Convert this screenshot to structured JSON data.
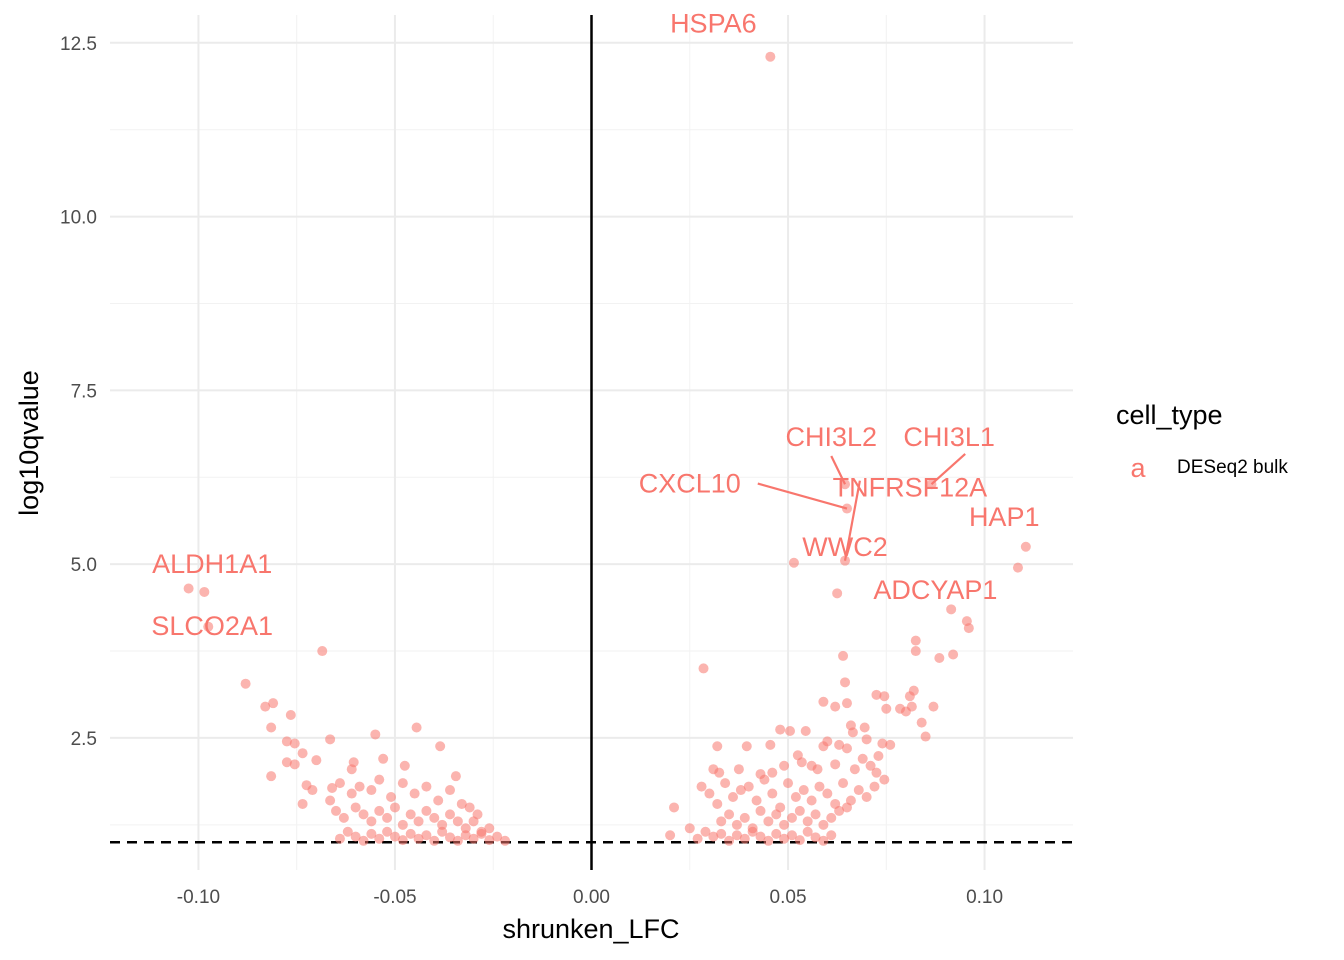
{
  "chart_data": {
    "type": "scatter",
    "title": "",
    "xlabel": "shrunken_LFC",
    "ylabel": "log10qvalue",
    "xlim": [
      -0.1225,
      0.1225
    ],
    "ylim": [
      0.6,
      12.9
    ],
    "x_ticks": [
      -0.1,
      -0.05,
      0.0,
      0.05,
      0.1
    ],
    "x_tick_labels": [
      "-0.10",
      "-0.05",
      "0.00",
      "0.05",
      "0.10"
    ],
    "y_ticks": [
      2.5,
      5.0,
      7.5,
      10.0,
      12.5
    ],
    "y_tick_labels": [
      "2.5",
      "5.0",
      "7.5",
      "10.0",
      "12.5"
    ],
    "grid": true,
    "point_color": "#F8766D",
    "point_opacity": 0.55,
    "vline_x": 0,
    "hline_y": 1.0,
    "legend": {
      "title": "cell_type",
      "key_glyph": "a",
      "entries": [
        "DESeq2 bulk"
      ],
      "placement": "right"
    },
    "labeled_points": [
      {
        "label": "HSPA6",
        "x": 0.0455,
        "y": 12.3
      },
      {
        "label": "CHI3L2",
        "x": 0.0645,
        "y": 6.15
      },
      {
        "label": "CHI3L1",
        "x": 0.0865,
        "y": 6.15
      },
      {
        "label": "CXCL10",
        "x": 0.065,
        "y": 5.8
      },
      {
        "label": "TNFRSF12A",
        "x": 0.0645,
        "y": 5.05
      },
      {
        "label": "WWC2",
        "x": 0.0515,
        "y": 5.02
      },
      {
        "label": "HAP1",
        "x": 0.1105,
        "y": 5.25
      },
      {
        "label": "ADCYAP1",
        "x": 0.1085,
        "y": 4.95
      },
      {
        "label": "ALDH1A1",
        "x": -0.1025,
        "y": 4.65
      },
      {
        "label": "SLCO2A1",
        "x": -0.0985,
        "y": 4.6
      }
    ],
    "series": [
      {
        "points": [
          [
            0.0455,
            12.3
          ],
          [
            0.0645,
            6.15
          ],
          [
            0.0865,
            6.15
          ],
          [
            0.065,
            5.8
          ],
          [
            0.0645,
            5.05
          ],
          [
            0.0515,
            5.02
          ],
          [
            0.1105,
            5.25
          ],
          [
            0.1085,
            4.95
          ],
          [
            0.0625,
            4.58
          ],
          [
            0.0915,
            4.35
          ],
          [
            0.0955,
            4.18
          ],
          [
            0.096,
            4.08
          ],
          [
            0.064,
            3.68
          ],
          [
            0.0825,
            3.9
          ],
          [
            0.0825,
            3.75
          ],
          [
            0.0885,
            3.65
          ],
          [
            0.092,
            3.7
          ],
          [
            0.0645,
            3.3
          ],
          [
            0.0285,
            3.5
          ],
          [
            0.065,
            3.0
          ],
          [
            0.0725,
            3.12
          ],
          [
            0.0745,
            3.1
          ],
          [
            0.075,
            2.92
          ],
          [
            0.0785,
            2.92
          ],
          [
            0.081,
            3.1
          ],
          [
            0.082,
            3.18
          ],
          [
            0.08,
            2.88
          ],
          [
            0.0815,
            2.95
          ],
          [
            0.087,
            2.95
          ],
          [
            0.059,
            3.02
          ],
          [
            0.062,
            2.95
          ],
          [
            0.0695,
            2.65
          ],
          [
            0.066,
            2.68
          ],
          [
            0.084,
            2.72
          ],
          [
            0.085,
            2.52
          ],
          [
            0.048,
            2.62
          ],
          [
            0.0505,
            2.6
          ],
          [
            0.0545,
            2.6
          ],
          [
            0.0665,
            2.58
          ],
          [
            0.06,
            2.45
          ],
          [
            0.063,
            2.4
          ],
          [
            0.07,
            2.48
          ],
          [
            0.074,
            2.42
          ],
          [
            0.076,
            2.4
          ],
          [
            0.032,
            2.38
          ],
          [
            0.0395,
            2.38
          ],
          [
            0.0455,
            2.4
          ],
          [
            0.0525,
            2.25
          ],
          [
            0.059,
            2.38
          ],
          [
            0.073,
            2.24
          ],
          [
            0.069,
            2.2
          ],
          [
            0.065,
            2.35
          ],
          [
            0.031,
            2.05
          ],
          [
            0.0325,
            2.0
          ],
          [
            0.0375,
            2.05
          ],
          [
            0.043,
            1.98
          ],
          [
            0.046,
            2.0
          ],
          [
            0.049,
            2.1
          ],
          [
            0.0535,
            2.15
          ],
          [
            0.056,
            2.1
          ],
          [
            0.0575,
            2.05
          ],
          [
            0.062,
            2.12
          ],
          [
            0.067,
            2.05
          ],
          [
            0.071,
            2.1
          ],
          [
            0.0725,
            2.0
          ],
          [
            0.0745,
            1.9
          ],
          [
            0.021,
            1.5
          ],
          [
            0.02,
            1.1
          ],
          [
            0.025,
            1.2
          ],
          [
            0.028,
            1.8
          ],
          [
            0.03,
            1.7
          ],
          [
            0.032,
            1.55
          ],
          [
            0.034,
            1.85
          ],
          [
            0.036,
            1.65
          ],
          [
            0.038,
            1.75
          ],
          [
            0.04,
            1.8
          ],
          [
            0.042,
            1.6
          ],
          [
            0.044,
            1.9
          ],
          [
            0.046,
            1.7
          ],
          [
            0.048,
            1.5
          ],
          [
            0.05,
            1.85
          ],
          [
            0.052,
            1.65
          ],
          [
            0.054,
            1.75
          ],
          [
            0.056,
            1.6
          ],
          [
            0.058,
            1.8
          ],
          [
            0.06,
            1.7
          ],
          [
            0.062,
            1.55
          ],
          [
            0.064,
            1.85
          ],
          [
            0.066,
            1.6
          ],
          [
            0.068,
            1.75
          ],
          [
            0.07,
            1.65
          ],
          [
            0.072,
            1.8
          ],
          [
            0.065,
            1.5
          ],
          [
            0.033,
            1.3
          ],
          [
            0.035,
            1.4
          ],
          [
            0.037,
            1.25
          ],
          [
            0.039,
            1.35
          ],
          [
            0.041,
            1.2
          ],
          [
            0.043,
            1.45
          ],
          [
            0.045,
            1.3
          ],
          [
            0.047,
            1.4
          ],
          [
            0.049,
            1.25
          ],
          [
            0.051,
            1.35
          ],
          [
            0.053,
            1.45
          ],
          [
            0.055,
            1.3
          ],
          [
            0.057,
            1.4
          ],
          [
            0.059,
            1.25
          ],
          [
            0.061,
            1.35
          ],
          [
            0.063,
            1.45
          ],
          [
            0.027,
            1.05
          ],
          [
            0.029,
            1.15
          ],
          [
            0.031,
            1.08
          ],
          [
            0.033,
            1.12
          ],
          [
            0.035,
            1.02
          ],
          [
            0.037,
            1.1
          ],
          [
            0.039,
            1.05
          ],
          [
            0.041,
            1.15
          ],
          [
            0.043,
            1.08
          ],
          [
            0.045,
            1.02
          ],
          [
            0.047,
            1.12
          ],
          [
            0.049,
            1.05
          ],
          [
            0.051,
            1.1
          ],
          [
            0.053,
            1.03
          ],
          [
            0.055,
            1.15
          ],
          [
            0.057,
            1.07
          ],
          [
            0.059,
            1.02
          ],
          [
            0.061,
            1.1
          ],
          [
            -0.1025,
            4.65
          ],
          [
            -0.0985,
            4.6
          ],
          [
            -0.0975,
            4.1
          ],
          [
            -0.088,
            3.28
          ],
          [
            -0.0685,
            3.75
          ],
          [
            -0.081,
            3.0
          ],
          [
            -0.083,
            2.95
          ],
          [
            -0.0765,
            2.83
          ],
          [
            -0.0815,
            2.65
          ],
          [
            -0.0775,
            2.45
          ],
          [
            -0.0755,
            2.42
          ],
          [
            -0.0665,
            2.48
          ],
          [
            -0.055,
            2.55
          ],
          [
            -0.0445,
            2.65
          ],
          [
            -0.0385,
            2.38
          ],
          [
            -0.0735,
            2.28
          ],
          [
            -0.07,
            2.18
          ],
          [
            -0.0775,
            2.15
          ],
          [
            -0.0755,
            2.12
          ],
          [
            -0.0605,
            2.15
          ],
          [
            -0.061,
            2.05
          ],
          [
            -0.053,
            2.2
          ],
          [
            -0.0475,
            2.1
          ],
          [
            -0.0345,
            1.95
          ],
          [
            -0.0815,
            1.95
          ],
          [
            -0.0725,
            1.82
          ],
          [
            -0.071,
            1.75
          ],
          [
            -0.066,
            1.78
          ],
          [
            -0.064,
            1.85
          ],
          [
            -0.061,
            1.7
          ],
          [
            -0.059,
            1.8
          ],
          [
            -0.056,
            1.75
          ],
          [
            -0.054,
            1.9
          ],
          [
            -0.051,
            1.65
          ],
          [
            -0.048,
            1.85
          ],
          [
            -0.045,
            1.7
          ],
          [
            -0.042,
            1.8
          ],
          [
            -0.039,
            1.6
          ],
          [
            -0.036,
            1.75
          ],
          [
            -0.033,
            1.55
          ],
          [
            -0.031,
            1.5
          ],
          [
            -0.029,
            1.4
          ],
          [
            -0.0735,
            1.55
          ],
          [
            -0.0665,
            1.6
          ],
          [
            -0.065,
            1.45
          ],
          [
            -0.063,
            1.35
          ],
          [
            -0.06,
            1.5
          ],
          [
            -0.058,
            1.4
          ],
          [
            -0.056,
            1.3
          ],
          [
            -0.054,
            1.45
          ],
          [
            -0.052,
            1.35
          ],
          [
            -0.05,
            1.5
          ],
          [
            -0.048,
            1.25
          ],
          [
            -0.046,
            1.4
          ],
          [
            -0.044,
            1.3
          ],
          [
            -0.042,
            1.45
          ],
          [
            -0.04,
            1.35
          ],
          [
            -0.038,
            1.25
          ],
          [
            -0.036,
            1.4
          ],
          [
            -0.034,
            1.3
          ],
          [
            -0.032,
            1.2
          ],
          [
            -0.03,
            1.3
          ],
          [
            -0.028,
            1.15
          ],
          [
            -0.026,
            1.2
          ],
          [
            -0.064,
            1.05
          ],
          [
            -0.062,
            1.15
          ],
          [
            -0.06,
            1.08
          ],
          [
            -0.058,
            1.02
          ],
          [
            -0.056,
            1.12
          ],
          [
            -0.054,
            1.05
          ],
          [
            -0.052,
            1.15
          ],
          [
            -0.05,
            1.08
          ],
          [
            -0.048,
            1.03
          ],
          [
            -0.046,
            1.12
          ],
          [
            -0.044,
            1.05
          ],
          [
            -0.042,
            1.1
          ],
          [
            -0.04,
            1.02
          ],
          [
            -0.038,
            1.15
          ],
          [
            -0.036,
            1.07
          ],
          [
            -0.034,
            1.02
          ],
          [
            -0.032,
            1.1
          ],
          [
            -0.03,
            1.05
          ],
          [
            -0.028,
            1.12
          ],
          [
            -0.026,
            1.03
          ],
          [
            -0.024,
            1.08
          ],
          [
            -0.022,
            1.02
          ]
        ]
      }
    ]
  }
}
